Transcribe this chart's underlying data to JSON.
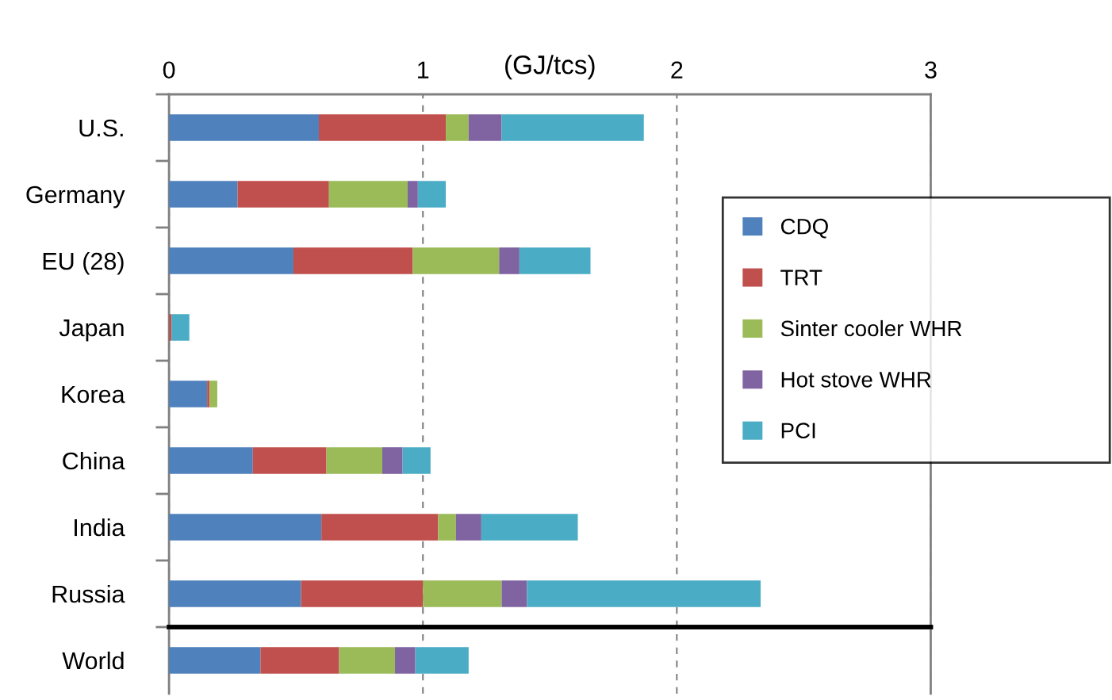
{
  "chart_data": [
    {
      "type": "bar",
      "orientation": "horizontal",
      "stacked": true,
      "xlabel": "(GJ/tcs)",
      "categories": [
        "U.S.",
        "Germany",
        "EU (28)",
        "Japan",
        "Korea",
        "China",
        "India",
        "Russia"
      ],
      "series": [
        {
          "name": "CDQ",
          "color": "#4f81bd",
          "values": [
            0.59,
            0.27,
            0.49,
            0,
            0.15,
            0.33,
            0.6,
            0.52
          ]
        },
        {
          "name": "TRT",
          "color": "#c0504d",
          "values": [
            0.5,
            0.36,
            0.47,
            0.01,
            0.01,
            0.29,
            0.46,
            0.48
          ]
        },
        {
          "name": "Sinter cooler WHR",
          "color": "#9bbb59",
          "values": [
            0.09,
            0.31,
            0.34,
            0,
            0.03,
            0.22,
            0.07,
            0.31
          ]
        },
        {
          "name": "Hot stove WHR",
          "color": "#8064a2",
          "values": [
            0.13,
            0.04,
            0.08,
            0,
            0,
            0.08,
            0.1,
            0.1
          ]
        },
        {
          "name": "PCI",
          "color": "#4bacc6",
          "values": [
            0.56,
            0.11,
            0.28,
            0.07,
            0,
            0.11,
            0.38,
            0.92
          ]
        }
      ],
      "xlim": [
        0,
        3
      ],
      "xticks": [
        0,
        1,
        2,
        3
      ],
      "grid": "x",
      "legend": "right"
    },
    {
      "type": "bar",
      "orientation": "horizontal",
      "stacked": true,
      "categories": [
        "World"
      ],
      "series": [
        {
          "color": "#4f81bd",
          "values": [
            0.36
          ]
        },
        {
          "color": "#c0504d",
          "values": [
            0.31
          ]
        },
        {
          "color": "#9bbb59",
          "values": [
            0.22
          ]
        },
        {
          "color": "#8064a2",
          "values": [
            0.08
          ]
        },
        {
          "color": "#4bacc6",
          "values": [
            0.21
          ]
        }
      ],
      "xlim": [
        0,
        3
      ],
      "xticks": [
        0,
        1,
        2,
        3
      ],
      "grid": "x",
      "tick_labels": "y"
    }
  ]
}
